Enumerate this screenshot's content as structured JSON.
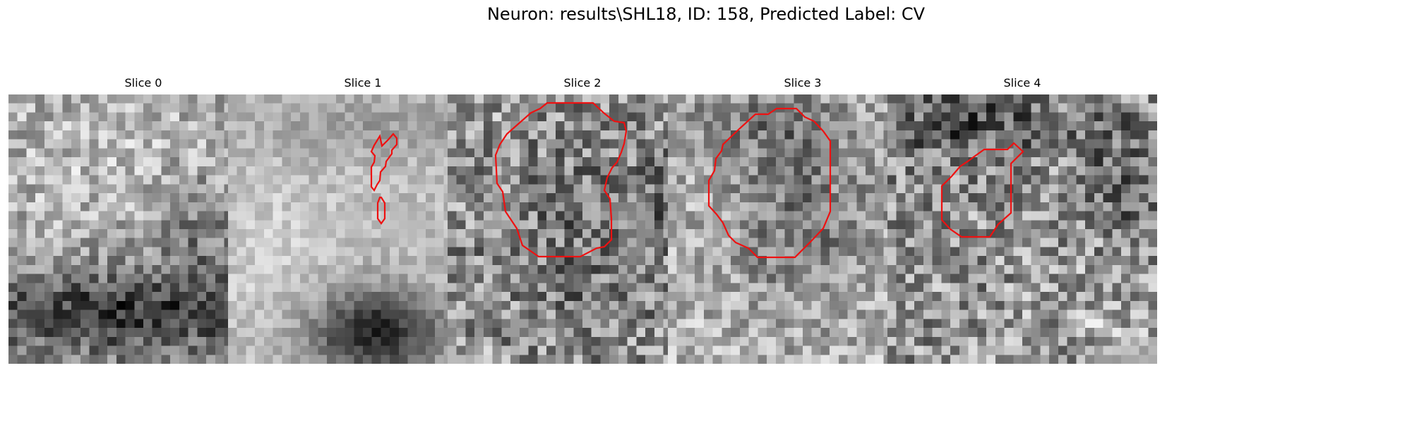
{
  "figure": {
    "title": "Neuron: results\\SHL18, ID: 158, Predicted Label: CV"
  },
  "panels": [
    {
      "title": "Slice 0"
    },
    {
      "title": "Slice 1"
    },
    {
      "title": "Slice 2"
    },
    {
      "title": "Slice 3"
    },
    {
      "title": "Slice 4"
    }
  ],
  "colors": {
    "contour": "#ee1111",
    "background": "#ffffff"
  },
  "colormap": "gray"
}
